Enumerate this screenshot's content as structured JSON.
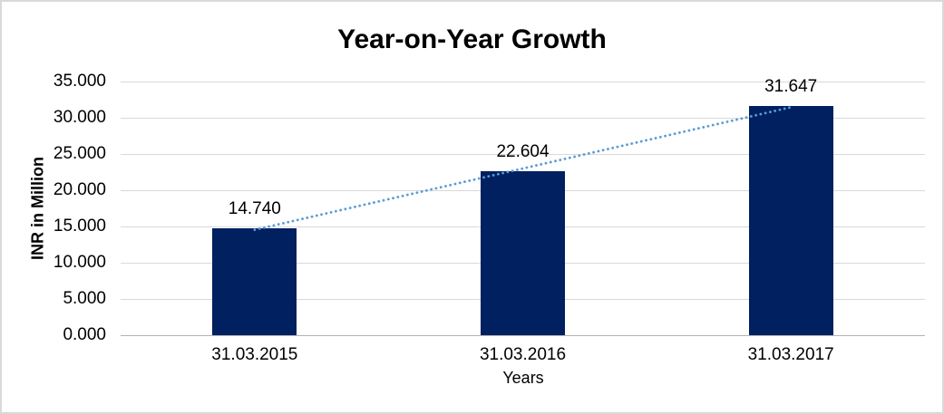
{
  "chart_data": {
    "type": "bar",
    "title": "Year-on-Year Growth",
    "xlabel": "Years",
    "ylabel": "INR in Million",
    "categories": [
      "31.03.2015",
      "31.03.2016",
      "31.03.2017"
    ],
    "values": [
      14740,
      22604,
      31647
    ],
    "data_labels": [
      "14.740",
      "22.604",
      "31.647"
    ],
    "y_tick_labels": [
      "35.000",
      "30.000",
      "25.000",
      "20.000",
      "15.000",
      "10.000",
      "5.000",
      "0.000"
    ],
    "ylim": [
      0,
      35000
    ],
    "y_tick_step": 5000,
    "grid": true,
    "legend": "none",
    "bar_color": "#002060",
    "trendline": {
      "type": "linear",
      "style": "dotted",
      "color": "#5b9bd5"
    },
    "colors": {
      "gridline": "#d9d9d9",
      "axis_line": "#b3b3b3",
      "text": "#000000",
      "background": "#ffffff",
      "border": "#d9d9d9"
    }
  }
}
